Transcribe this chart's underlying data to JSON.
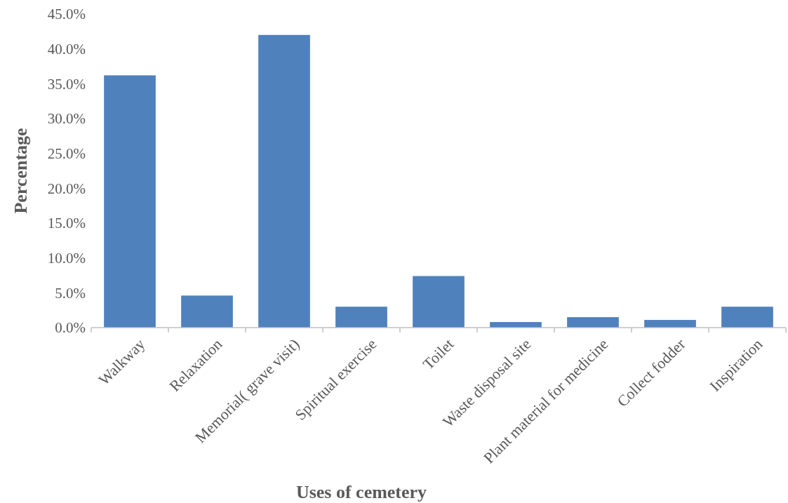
{
  "chart_data": {
    "type": "bar",
    "xlabel": "Uses of cemetery",
    "ylabel": "Percentage",
    "categories": [
      "Walkway",
      "Relaxation",
      "Memorial( grave visit)",
      "Spiritual exercise",
      "Toilet",
      "Waste disposal site",
      "Plant material for medicine",
      "Collect fodder",
      "Inspiration"
    ],
    "values": [
      36.2,
      4.6,
      42.0,
      3.0,
      7.4,
      0.8,
      1.5,
      1.1,
      3.0
    ],
    "color": "#4f81bd",
    "ylim": [
      0,
      45
    ],
    "yticks": [
      {
        "value": 0,
        "label": "0.0%"
      },
      {
        "value": 5,
        "label": "5.0%"
      },
      {
        "value": 10,
        "label": "10.0%"
      },
      {
        "value": 15,
        "label": "15.0%"
      },
      {
        "value": 20,
        "label": "20.0%"
      },
      {
        "value": 25,
        "label": "25.0%"
      },
      {
        "value": 30,
        "label": "30.0%"
      },
      {
        "value": 35,
        "label": "35.0%"
      },
      {
        "value": 40,
        "label": "40.0%"
      },
      {
        "value": 45,
        "label": "45.0%"
      }
    ],
    "grid": false
  }
}
